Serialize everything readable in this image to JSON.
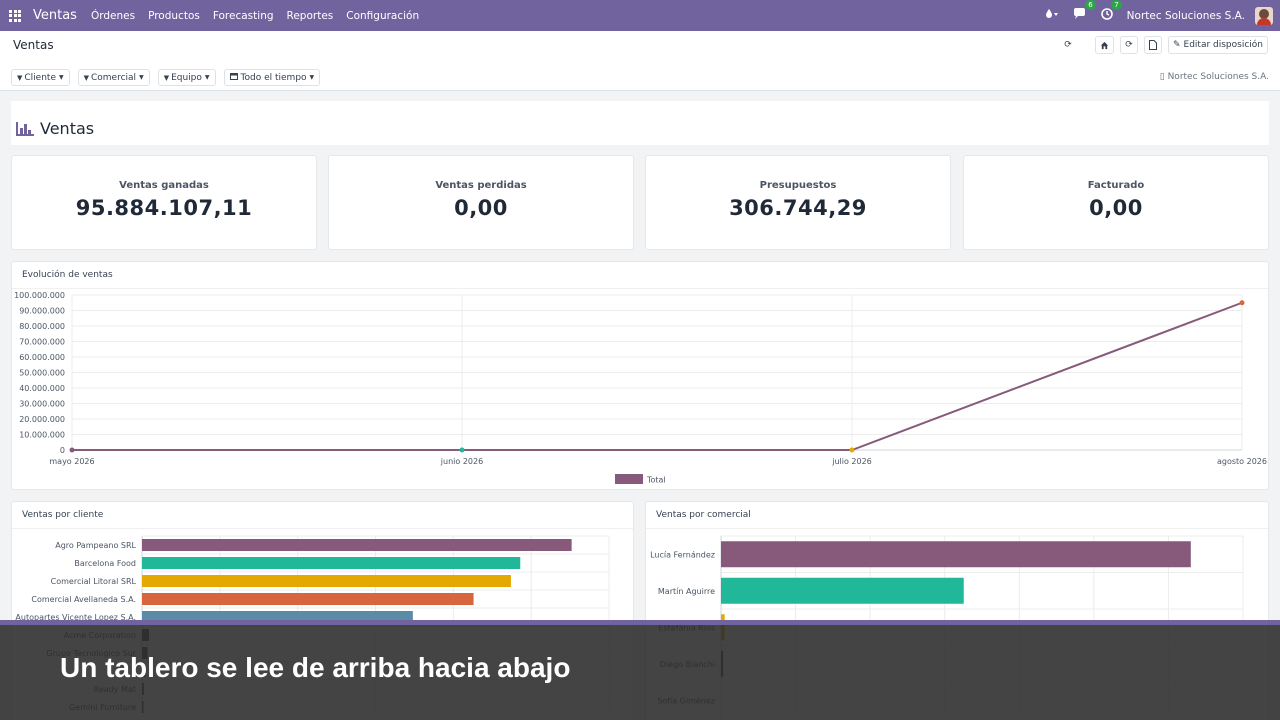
{
  "topbar": {
    "app_name": "Ventas",
    "menu": [
      "Órdenes",
      "Productos",
      "Forecasting",
      "Reportes",
      "Configuración"
    ],
    "chat_badge": "6",
    "activity_badge": "7",
    "company": "Nortec Soluciones S.A.",
    "icons": [
      "apps-grid-icon",
      "drop-icon",
      "chat-icon",
      "clock-icon"
    ]
  },
  "control": {
    "breadcrumb": "Ventas",
    "edit_layout": "Editar disposición",
    "filters": [
      {
        "label": "Cliente"
      },
      {
        "label": "Comercial"
      },
      {
        "label": "Equipo"
      },
      {
        "label": "Todo el tiempo"
      }
    ],
    "company_filter": "Nortec Soluciones S.A."
  },
  "dashboard": {
    "title": "Ventas",
    "kpis": [
      {
        "label": "Ventas ganadas",
        "value": "95.884.107,11"
      },
      {
        "label": "Ventas perdidas",
        "value": "0,00"
      },
      {
        "label": "Presupuestos",
        "value": "306.744,29"
      },
      {
        "label": "Facturado",
        "value": "0,00"
      }
    ]
  },
  "chart_data": [
    {
      "type": "line",
      "title": "Evolución de ventas",
      "x": [
        "mayo 2026",
        "junio 2026",
        "julio 2026",
        "agosto 2026"
      ],
      "series": [
        {
          "name": "Total",
          "values": [
            0,
            0,
            0,
            95000000
          ],
          "color": "#875a7b"
        }
      ],
      "ylim": [
        0,
        100000000
      ],
      "yticks": [
        "0",
        "10.000.000",
        "20.000.000",
        "30.000.000",
        "40.000.000",
        "50.000.000",
        "60.000.000",
        "70.000.000",
        "80.000.000",
        "90.000.000",
        "100.000.000"
      ],
      "legend": "bottom",
      "grid": true
    },
    {
      "type": "bar",
      "orientation": "horizontal",
      "title": "Ventas por cliente",
      "categories": [
        "Agro Pampeano SRL",
        "Barcelona Food",
        "Comercial Litoral SRL",
        "Comercial Avellaneda S.A.",
        "Autopartes Vicente Lopez S.A.",
        "Acme Corporation",
        "Grupo Tecnologico Sur",
        "",
        "Ready Mat",
        "Gemini Furniture"
      ],
      "values": [
        0.92,
        0.81,
        0.79,
        0.71,
        0.58,
        0.015,
        0.012,
        0.008,
        0.004,
        0.002
      ],
      "colors": [
        "#875a7b",
        "#21b799",
        "#e4a900",
        "#d7663f",
        "#5b8ba6",
        "#555555",
        "#555555",
        "#555555",
        "#555555",
        "#555555"
      ],
      "grid": true
    },
    {
      "type": "bar",
      "orientation": "horizontal",
      "title": "Ventas por comercial",
      "categories": [
        "Lucía Fernández",
        "Martín Aguirre",
        "Estefanía Ríos",
        "Diego Bianchi",
        "Sofía Giménez"
      ],
      "values": [
        0.9,
        0.465,
        0.007,
        0.004,
        0.0
      ],
      "colors": [
        "#875a7b",
        "#21b799",
        "#e4a900",
        "#555555",
        "#555555"
      ],
      "grid": true
    }
  ],
  "overlay": {
    "caption": "Un tablero se lee de arriba hacia abajo"
  }
}
